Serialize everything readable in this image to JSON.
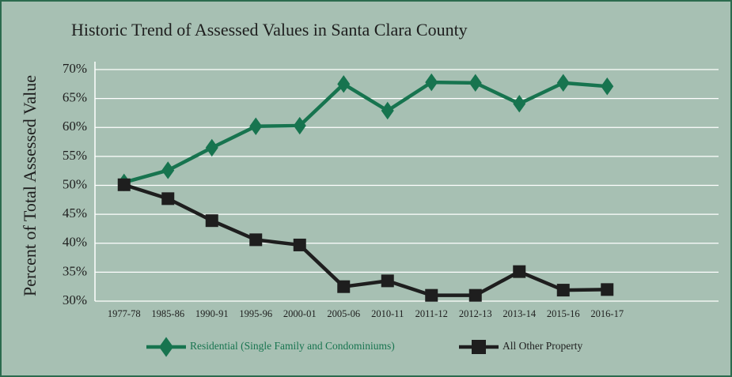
{
  "chart_data": {
    "type": "line",
    "title": "Historic Trend of Assessed Values in Santa Clara County",
    "y_label": "Percent of Total Assessed Value",
    "categories": [
      "1977-78",
      "1985-86",
      "1990-91",
      "1995-96",
      "2000-01",
      "2005-06",
      "2010-11",
      "2011-12",
      "2012-13",
      "2013-14",
      "2015-16",
      "2016-17"
    ],
    "series": [
      {
        "name": "Residential (Single Family and Condominiums)",
        "color": "#17744f",
        "marker": "diamond",
        "values": [
          50.5,
          52.6,
          56.5,
          60.2,
          60.3,
          67.5,
          62.9,
          67.8,
          67.7,
          64.1,
          67.7,
          67.1
        ]
      },
      {
        "name": "All Other Property",
        "color": "#1e1e1e",
        "marker": "square",
        "values": [
          50.1,
          47.7,
          43.9,
          40.6,
          39.7,
          32.5,
          33.5,
          31.0,
          31.0,
          35.1,
          31.9,
          32.0
        ]
      }
    ],
    "ylim": [
      30,
      70
    ],
    "yticks": [
      {
        "value": 30,
        "label": "30%"
      },
      {
        "value": 35,
        "label": "35%"
      },
      {
        "value": 40,
        "label": "40%"
      },
      {
        "value": 45,
        "label": "45%"
      },
      {
        "value": 50,
        "label": "50%"
      },
      {
        "value": 55,
        "label": "55%"
      },
      {
        "value": 60,
        "label": "60%"
      },
      {
        "value": 65,
        "label": "65%"
      },
      {
        "value": 70,
        "label": "70%"
      }
    ],
    "grid": true
  }
}
